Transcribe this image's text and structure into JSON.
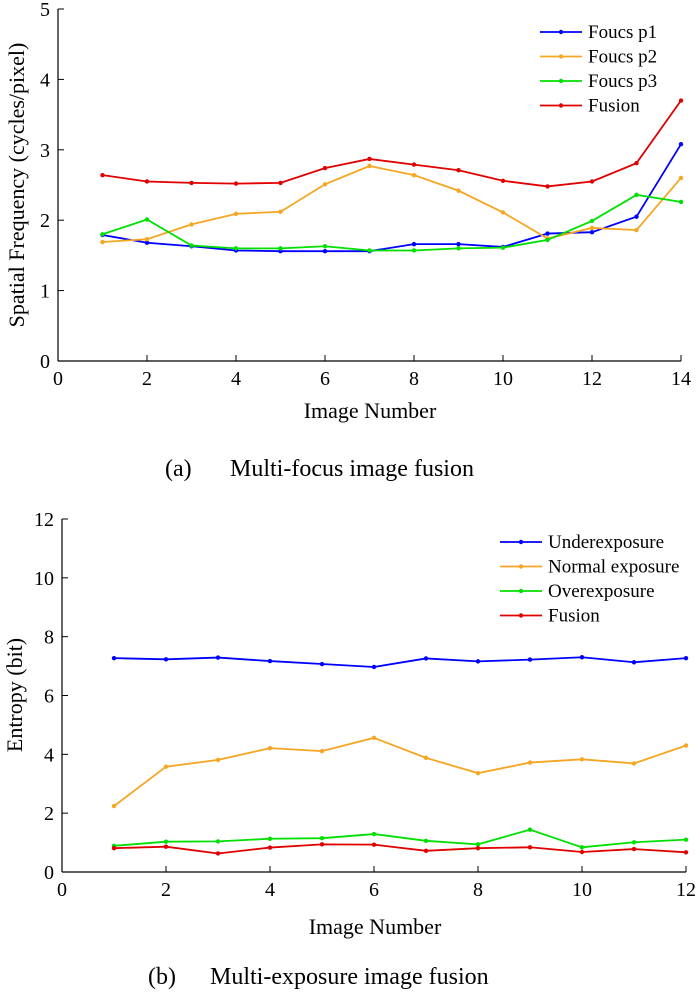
{
  "chart_data": [
    {
      "type": "line",
      "caption_letter": "(a)",
      "caption_text": "Multi-focus image fusion",
      "xlabel": "Image Number",
      "ylabel": "Spatial Frequency (cycles/pixel)",
      "xlim": [
        0,
        14
      ],
      "ylim": [
        0,
        5
      ],
      "xticks": [
        0,
        2,
        4,
        6,
        8,
        10,
        12,
        14
      ],
      "yticks": [
        0,
        1,
        2,
        3,
        4,
        5
      ],
      "x": [
        1,
        2,
        3,
        4,
        5,
        6,
        7,
        8,
        9,
        10,
        11,
        12,
        13,
        14
      ],
      "legend_position": "top-right",
      "series": [
        {
          "name": "Foucs p1",
          "color": "#0000ff",
          "values": [
            1.79,
            1.68,
            1.63,
            1.57,
            1.56,
            1.56,
            1.56,
            1.66,
            1.66,
            1.62,
            1.81,
            1.83,
            2.05,
            3.08
          ]
        },
        {
          "name": "Foucs p2",
          "color": "#f5a623",
          "values": [
            1.69,
            1.73,
            1.94,
            2.09,
            2.12,
            2.51,
            2.77,
            2.64,
            2.42,
            2.11,
            1.74,
            1.89,
            1.86,
            2.6
          ]
        },
        {
          "name": "Foucs p3",
          "color": "#00e000",
          "values": [
            1.8,
            2.01,
            1.64,
            1.6,
            1.6,
            1.63,
            1.57,
            1.57,
            1.6,
            1.61,
            1.72,
            1.99,
            2.36,
            2.26
          ]
        },
        {
          "name": "Fusion",
          "color": "#e00000",
          "values": [
            2.64,
            2.55,
            2.53,
            2.52,
            2.53,
            2.74,
            2.87,
            2.79,
            2.71,
            2.56,
            2.48,
            2.55,
            2.81,
            3.7
          ]
        }
      ]
    },
    {
      "type": "line",
      "caption_letter": "(b)",
      "caption_text": "Multi-exposure image fusion",
      "xlabel": "Image Number",
      "ylabel": "Entropy (bit)",
      "xlim": [
        0,
        12
      ],
      "ylim": [
        0,
        12
      ],
      "xticks": [
        0,
        2,
        4,
        6,
        8,
        10,
        12
      ],
      "yticks": [
        0,
        2,
        4,
        6,
        8,
        10,
        12
      ],
      "x": [
        1,
        2,
        3,
        4,
        5,
        6,
        7,
        8,
        9,
        10,
        11,
        12
      ],
      "legend_position": "top-right",
      "series": [
        {
          "name": "Underexposure",
          "color": "#0000ff",
          "values": [
            7.27,
            7.23,
            7.29,
            7.17,
            7.07,
            6.97,
            7.26,
            7.16,
            7.22,
            7.3,
            7.13,
            7.27
          ]
        },
        {
          "name": "Normal exposure",
          "color": "#f5a623",
          "values": [
            2.24,
            3.58,
            3.81,
            4.21,
            4.11,
            4.56,
            3.88,
            3.36,
            3.72,
            3.83,
            3.69,
            4.3
          ]
        },
        {
          "name": "Overexposure",
          "color": "#00e000",
          "values": [
            0.89,
            1.03,
            1.04,
            1.13,
            1.15,
            1.29,
            1.06,
            0.94,
            1.44,
            0.84,
            1.01,
            1.1
          ]
        },
        {
          "name": "Fusion",
          "color": "#e00000",
          "values": [
            0.81,
            0.86,
            0.63,
            0.83,
            0.94,
            0.93,
            0.72,
            0.81,
            0.84,
            0.68,
            0.78,
            0.67
          ]
        }
      ]
    }
  ]
}
